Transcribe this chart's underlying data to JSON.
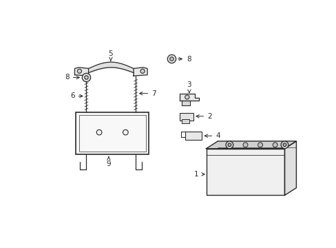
{
  "bg_color": "#ffffff",
  "line_color": "#2a2a2a",
  "lw": 1.0,
  "fig_width": 4.89,
  "fig_height": 3.6,
  "dpi": 100
}
